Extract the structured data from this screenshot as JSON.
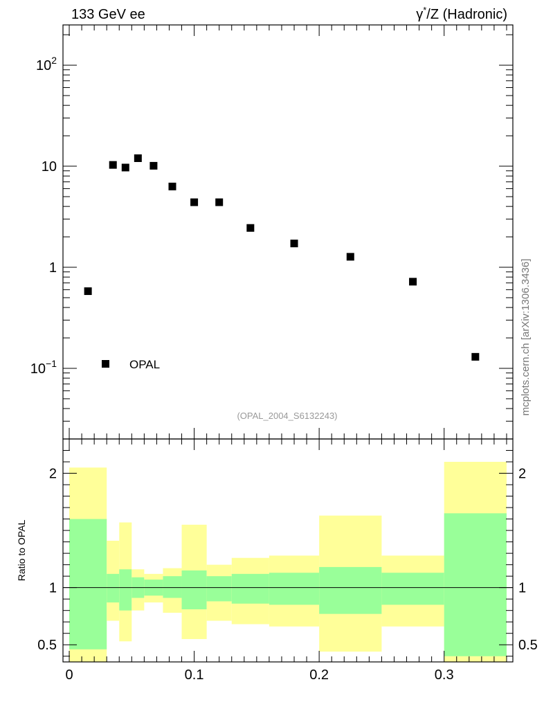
{
  "header": {
    "left": "133 GeV ee",
    "right_prefix": "γ",
    "right_sup": "*",
    "right_suffix": "/Z (Hadronic)"
  },
  "side_label": "mcplots.cern.ch [arXiv:1306.3436]",
  "analysis_id": "(OPAL_2004_S6132243)",
  "legend": {
    "entry": "OPAL"
  },
  "ratio_ylabel": "Ratio to OPAL",
  "colors": {
    "inner_band": "#99ff99",
    "outer_band": "#ffff99",
    "marker": "#000000"
  },
  "chart_data": [
    {
      "type": "scatter",
      "yscale": "log",
      "ylim": [
        0.02,
        250
      ],
      "xlim": [
        -0.005,
        0.355
      ],
      "ytick_labels": [
        {
          "value": 0.1,
          "base": "10",
          "exp": "−1"
        },
        {
          "value": 1,
          "base": "1",
          "exp": ""
        },
        {
          "value": 10,
          "base": "10",
          "exp": ""
        },
        {
          "value": 100,
          "base": "10",
          "exp": "2"
        }
      ],
      "series": [
        {
          "name": "OPAL",
          "x": [
            0.015,
            0.035,
            0.045,
            0.055,
            0.0675,
            0.0825,
            0.1,
            0.12,
            0.145,
            0.18,
            0.225,
            0.275,
            0.325
          ],
          "y": [
            0.58,
            10.3,
            9.7,
            12.0,
            10.1,
            6.3,
            4.4,
            4.4,
            2.45,
            1.72,
            1.27,
            0.72,
            0.13
          ]
        }
      ]
    },
    {
      "type": "area",
      "ylabel": "Ratio to OPAL",
      "xlim": [
        -0.005,
        0.355
      ],
      "ylim": [
        0.35,
        2.3
      ],
      "xticks": [
        0,
        0.1,
        0.2,
        0.3
      ],
      "xtick_labels": [
        "0",
        "0.1",
        "0.2",
        "0.3"
      ],
      "yticks": [
        0.5,
        1,
        2
      ],
      "ytick_labels": [
        "0.5",
        "1",
        "2"
      ],
      "reference_line": 1,
      "bins": [
        {
          "x0": 0.0,
          "x1": 0.03,
          "inner": [
            0.46,
            1.6
          ],
          "outer": [
            0.35,
            2.05
          ]
        },
        {
          "x0": 0.03,
          "x1": 0.04,
          "inner": [
            0.87,
            1.12
          ],
          "outer": [
            0.71,
            1.41
          ]
        },
        {
          "x0": 0.04,
          "x1": 0.05,
          "inner": [
            0.8,
            1.16
          ],
          "outer": [
            0.53,
            1.57
          ]
        },
        {
          "x0": 0.05,
          "x1": 0.06,
          "inner": [
            0.91,
            1.09
          ],
          "outer": [
            0.8,
            1.16
          ]
        },
        {
          "x0": 0.06,
          "x1": 0.075,
          "inner": [
            0.93,
            1.07
          ],
          "outer": [
            0.87,
            1.12
          ]
        },
        {
          "x0": 0.075,
          "x1": 0.09,
          "inner": [
            0.91,
            1.1
          ],
          "outer": [
            0.78,
            1.17
          ]
        },
        {
          "x0": 0.09,
          "x1": 0.11,
          "inner": [
            0.81,
            1.15
          ],
          "outer": [
            0.55,
            1.55
          ]
        },
        {
          "x0": 0.11,
          "x1": 0.13,
          "inner": [
            0.88,
            1.1
          ],
          "outer": [
            0.71,
            1.2
          ]
        },
        {
          "x0": 0.13,
          "x1": 0.16,
          "inner": [
            0.86,
            1.12
          ],
          "outer": [
            0.68,
            1.26
          ]
        },
        {
          "x0": 0.16,
          "x1": 0.2,
          "inner": [
            0.85,
            1.13
          ],
          "outer": [
            0.66,
            1.28
          ]
        },
        {
          "x0": 0.2,
          "x1": 0.25,
          "inner": [
            0.77,
            1.18
          ],
          "outer": [
            0.44,
            1.63
          ]
        },
        {
          "x0": 0.25,
          "x1": 0.3,
          "inner": [
            0.85,
            1.13
          ],
          "outer": [
            0.66,
            1.28
          ]
        },
        {
          "x0": 0.3,
          "x1": 0.35,
          "inner": [
            0.4,
            1.65
          ],
          "outer": [
            0.35,
            2.1
          ]
        }
      ]
    }
  ]
}
